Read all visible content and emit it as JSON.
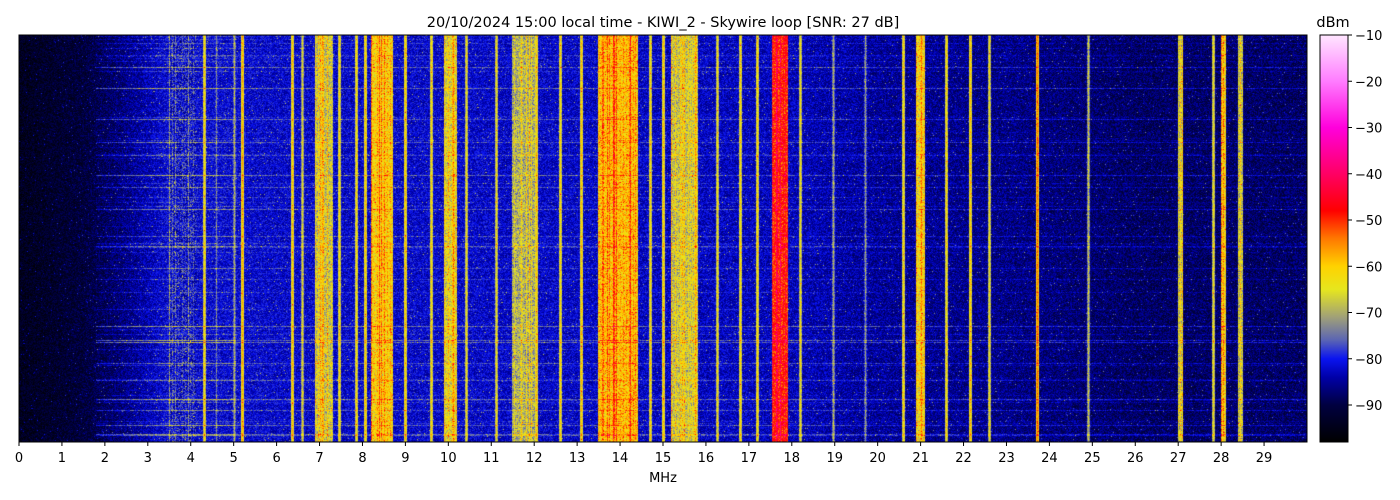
{
  "chart_data": {
    "type": "heatmap",
    "title": "20/10/2024 15:00 local time - KIWI_2 - Skywire loop [SNR: 27 dB]",
    "xlabel": "MHz",
    "ylabel": "",
    "xlim": [
      0,
      30
    ],
    "x_ticks": [
      0,
      1,
      2,
      3,
      4,
      5,
      6,
      7,
      8,
      9,
      10,
      11,
      12,
      13,
      14,
      15,
      16,
      17,
      18,
      19,
      20,
      21,
      22,
      23,
      24,
      25,
      26,
      27,
      28,
      29
    ],
    "colorbar": {
      "label": "dBm",
      "range": [
        -98,
        -10
      ],
      "ticks": [
        -10,
        -20,
        -30,
        -40,
        -50,
        -60,
        -70,
        -80,
        -90
      ],
      "stops": [
        {
          "v": -98,
          "color": "#000000"
        },
        {
          "v": -90,
          "color": "#000040"
        },
        {
          "v": -84,
          "color": "#0000a8"
        },
        {
          "v": -80,
          "color": "#0a14f0"
        },
        {
          "v": -76,
          "color": "#5a64b4"
        },
        {
          "v": -71,
          "color": "#a0a078"
        },
        {
          "v": -65,
          "color": "#e6e61e"
        },
        {
          "v": -60,
          "color": "#ffd200"
        },
        {
          "v": -54,
          "color": "#ff7800"
        },
        {
          "v": -48,
          "color": "#ff0000"
        },
        {
          "v": -40,
          "color": "#ff0064"
        },
        {
          "v": -30,
          "color": "#ff00dc"
        },
        {
          "v": -20,
          "color": "#ff7cff"
        },
        {
          "v": -10,
          "color": "#ffe6ff"
        }
      ]
    },
    "background_dbm": [
      {
        "mhz": 0,
        "dbm": -94
      },
      {
        "mhz": 1.5,
        "dbm": -91
      },
      {
        "mhz": 2.5,
        "dbm": -86
      },
      {
        "mhz": 3.5,
        "dbm": -81
      },
      {
        "mhz": 6,
        "dbm": -82
      },
      {
        "mhz": 10,
        "dbm": -82
      },
      {
        "mhz": 18,
        "dbm": -83
      },
      {
        "mhz": 20,
        "dbm": -85
      },
      {
        "mhz": 23,
        "dbm": -86
      },
      {
        "mhz": 26,
        "dbm": -88
      },
      {
        "mhz": 30,
        "dbm": -88
      }
    ],
    "bands": [
      {
        "from": 3.5,
        "to": 4.1,
        "dbm": -78
      },
      {
        "from": 6.9,
        "to": 7.3,
        "dbm": -64
      },
      {
        "from": 8.2,
        "to": 8.7,
        "dbm": -58
      },
      {
        "from": 9.9,
        "to": 10.2,
        "dbm": -62
      },
      {
        "from": 11.5,
        "to": 12.0,
        "dbm": -66
      },
      {
        "from": 13.5,
        "to": 14.4,
        "dbm": -56
      },
      {
        "from": 15.2,
        "to": 15.8,
        "dbm": -64
      },
      {
        "from": 17.55,
        "to": 17.9,
        "dbm": -46
      },
      {
        "from": 20.9,
        "to": 21.1,
        "dbm": -60
      },
      {
        "from": 27.0,
        "to": 27.1,
        "dbm": -66
      },
      {
        "from": 28.0,
        "to": 28.1,
        "dbm": -60
      },
      {
        "from": 28.4,
        "to": 28.5,
        "dbm": -66
      }
    ],
    "carriers": [
      {
        "mhz": 4.3,
        "dbm": -62
      },
      {
        "mhz": 4.6,
        "dbm": -74
      },
      {
        "mhz": 5.0,
        "dbm": -70
      },
      {
        "mhz": 5.2,
        "dbm": -58
      },
      {
        "mhz": 6.35,
        "dbm": -60
      },
      {
        "mhz": 6.6,
        "dbm": -66
      },
      {
        "mhz": 7.05,
        "dbm": -58
      },
      {
        "mhz": 7.45,
        "dbm": -62
      },
      {
        "mhz": 7.85,
        "dbm": -62
      },
      {
        "mhz": 8.05,
        "dbm": -60
      },
      {
        "mhz": 8.5,
        "dbm": -55
      },
      {
        "mhz": 9.0,
        "dbm": -60
      },
      {
        "mhz": 9.6,
        "dbm": -62
      },
      {
        "mhz": 10.1,
        "dbm": -56
      },
      {
        "mhz": 10.4,
        "dbm": -64
      },
      {
        "mhz": 11.1,
        "dbm": -64
      },
      {
        "mhz": 11.7,
        "dbm": -62
      },
      {
        "mhz": 12.05,
        "dbm": -60
      },
      {
        "mhz": 12.6,
        "dbm": -62
      },
      {
        "mhz": 13.1,
        "dbm": -60
      },
      {
        "mhz": 13.6,
        "dbm": -54
      },
      {
        "mhz": 13.85,
        "dbm": -52
      },
      {
        "mhz": 14.2,
        "dbm": -55
      },
      {
        "mhz": 14.7,
        "dbm": -62
      },
      {
        "mhz": 15.0,
        "dbm": -60
      },
      {
        "mhz": 15.45,
        "dbm": -60
      },
      {
        "mhz": 15.75,
        "dbm": -58
      },
      {
        "mhz": 16.25,
        "dbm": -64
      },
      {
        "mhz": 16.8,
        "dbm": -62
      },
      {
        "mhz": 17.2,
        "dbm": -62
      },
      {
        "mhz": 17.65,
        "dbm": -45
      },
      {
        "mhz": 17.8,
        "dbm": -48
      },
      {
        "mhz": 18.2,
        "dbm": -64
      },
      {
        "mhz": 18.95,
        "dbm": -70
      },
      {
        "mhz": 19.7,
        "dbm": -72
      },
      {
        "mhz": 20.6,
        "dbm": -62
      },
      {
        "mhz": 21.0,
        "dbm": -55
      },
      {
        "mhz": 21.6,
        "dbm": -62
      },
      {
        "mhz": 22.15,
        "dbm": -60
      },
      {
        "mhz": 22.6,
        "dbm": -64
      },
      {
        "mhz": 23.7,
        "dbm": -54
      },
      {
        "mhz": 24.9,
        "dbm": -68
      },
      {
        "mhz": 27.05,
        "dbm": -62
      },
      {
        "mhz": 27.8,
        "dbm": -64
      },
      {
        "mhz": 28.05,
        "dbm": -56
      },
      {
        "mhz": 28.45,
        "dbm": -62
      }
    ]
  }
}
